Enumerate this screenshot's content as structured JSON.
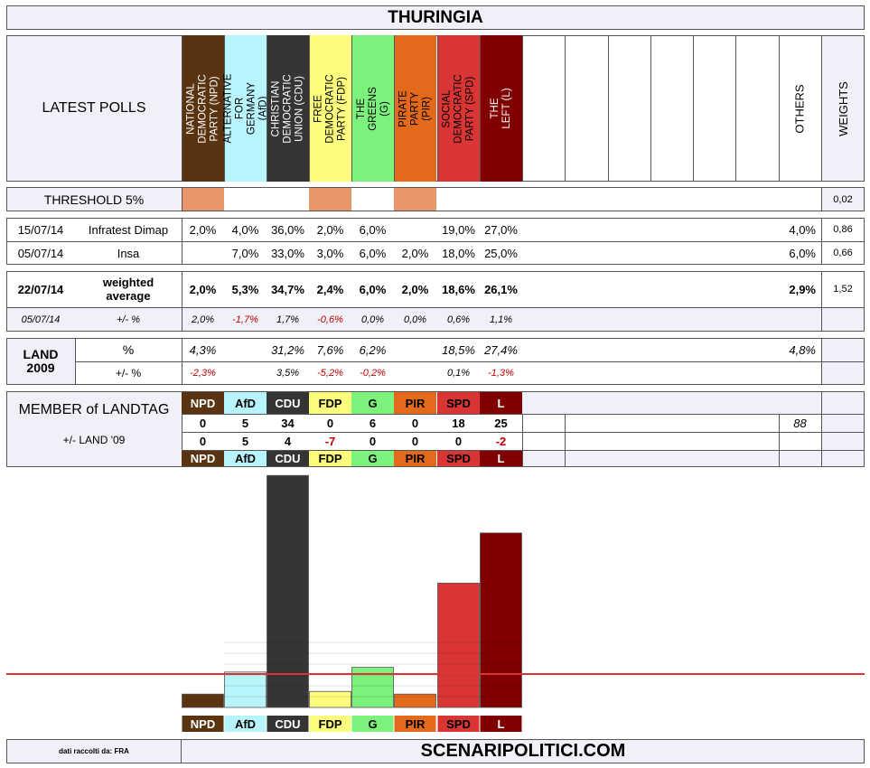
{
  "title": "THURINGIA",
  "latest_polls_label": "LATEST POLLS",
  "others_label": "OTHERS",
  "weights_label": "WEIGHTS",
  "parties": [
    {
      "full": "NATIONAL DEMOCRATIC PARTY (NPD)",
      "abbr": "NPD",
      "color": "#5a3311",
      "text_color": "#ffffff"
    },
    {
      "full": "ALTERNATIVE FOR GERMANY (AfD)",
      "abbr": "AfD",
      "color": "#b8f4fb",
      "text_color": "#000000"
    },
    {
      "full": "CHRISTIAN DEMOCRATIC UNION (CDU)",
      "abbr": "CDU",
      "color": "#353535",
      "text_color": "#ffffff"
    },
    {
      "full": "FREE DEMOCRATIC PARTY (FDP)",
      "abbr": "FDP",
      "color": "#fcfc7c",
      "text_color": "#000000"
    },
    {
      "full": "THE GREENS (G)",
      "abbr": "G",
      "color": "#7cf27c",
      "text_color": "#000000"
    },
    {
      "full": "PIRATE PARTY (PIR)",
      "abbr": "PIR",
      "color": "#e36a1a",
      "text_color": "#000000"
    },
    {
      "full": "SOCIAL DEMOCRATIC PARTY (SPD)",
      "abbr": "SPD",
      "color": "#d93535",
      "text_color": "#000000"
    },
    {
      "full": "THE LEFT (L)",
      "abbr": "L",
      "color": "#800000",
      "text_color": "#ffffff"
    }
  ],
  "threshold": {
    "label": "THRESHOLD 5%",
    "weight": "0,02",
    "highlight_color": "#e9966b",
    "below_threshold": [
      true,
      false,
      false,
      true,
      false,
      true,
      false,
      false
    ]
  },
  "polls": [
    {
      "date": "15/07/14",
      "institute": "Infratest Dimap",
      "values": [
        "2,0%",
        "4,0%",
        "36,0%",
        "2,0%",
        "6,0%",
        "",
        "19,0%",
        "27,0%"
      ],
      "others": "4,0%",
      "weight": "0,86"
    },
    {
      "date": "05/07/14",
      "institute": "Insa",
      "values": [
        "",
        "7,0%",
        "33,0%",
        "3,0%",
        "6,0%",
        "2,0%",
        "18,0%",
        "25,0%"
      ],
      "others": "6,0%",
      "weight": "0,66"
    }
  ],
  "weighted": {
    "date": "22/07/14",
    "label": "weighted average",
    "values": [
      "2,0%",
      "5,3%",
      "34,7%",
      "2,4%",
      "6,0%",
      "2,0%",
      "18,6%",
      "26,1%"
    ],
    "others": "2,9%",
    "weight": "1,52"
  },
  "delta": {
    "date": "05/07/14",
    "label": "+/- %",
    "values": [
      "2,0%",
      "-1,7%",
      "1,7%",
      "-0,6%",
      "0,0%",
      "0,0%",
      "0,6%",
      "1,1%"
    ],
    "negative": [
      false,
      true,
      false,
      true,
      false,
      false,
      false,
      false
    ]
  },
  "land": {
    "label": "LAND 2009",
    "pct_label": "%",
    "values": [
      "4,3%",
      "",
      "31,2%",
      "7,6%",
      "6,2%",
      "",
      "18,5%",
      "27,4%"
    ],
    "others": "4,8%",
    "diff_label": "+/- %",
    "diff": [
      "-2,3%",
      "",
      "3,5%",
      "-5,2%",
      "-0,2%",
      "",
      "0,1%",
      "-1,3%"
    ],
    "diff_negative": [
      true,
      false,
      false,
      true,
      true,
      false,
      false,
      true
    ]
  },
  "members": {
    "label": "MEMBER of LANDTAG",
    "sub_label": "+/- LAND '09",
    "seats": [
      "0",
      "5",
      "34",
      "0",
      "6",
      "0",
      "18",
      "25"
    ],
    "total": "88",
    "change": [
      "0",
      "5",
      "4",
      "-7",
      "0",
      "0",
      "0",
      "-2"
    ],
    "change_negative": [
      false,
      false,
      false,
      true,
      false,
      false,
      false,
      true
    ]
  },
  "chart_data": {
    "type": "bar",
    "categories": [
      "NPD",
      "AfD",
      "CDU",
      "FDP",
      "G",
      "PIR",
      "SPD",
      "L"
    ],
    "values": [
      2.0,
      5.3,
      34.7,
      2.4,
      6.0,
      2.0,
      18.6,
      26.1
    ],
    "threshold_line": 5,
    "colors": [
      "#5a3311",
      "#b8f4fb",
      "#353535",
      "#fcfc7c",
      "#7cf27c",
      "#e36a1a",
      "#d93535",
      "#800000"
    ]
  },
  "footer": {
    "source": "dati raccolti da: FRA",
    "site": "SCENARIPOLITICI.COM"
  }
}
